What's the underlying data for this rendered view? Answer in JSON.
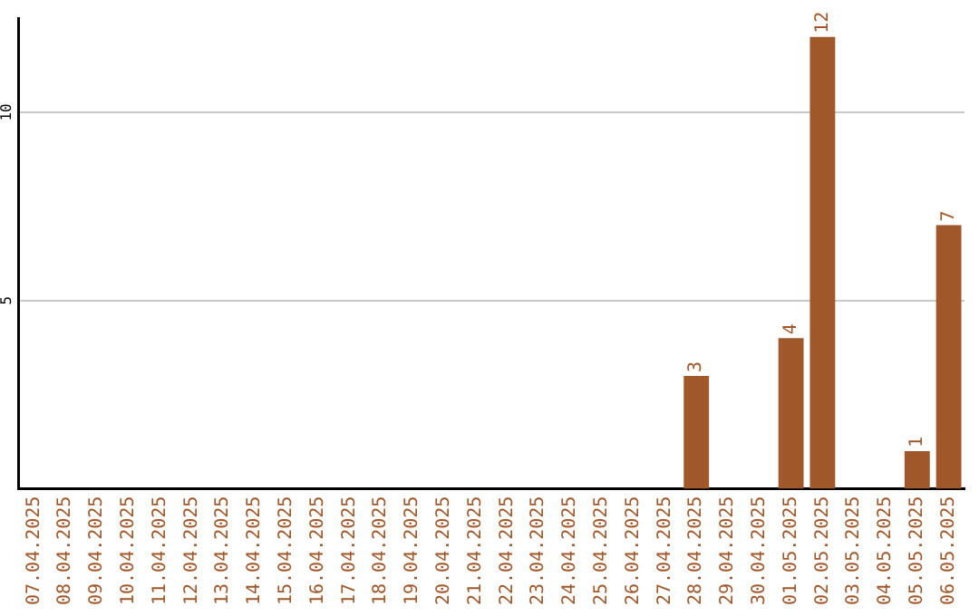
{
  "chart_data": {
    "type": "bar",
    "categories": [
      "07.04.2025",
      "08.04.2025",
      "09.04.2025",
      "10.04.2025",
      "11.04.2025",
      "12.04.2025",
      "13.04.2025",
      "14.04.2025",
      "15.04.2025",
      "16.04.2025",
      "17.04.2025",
      "18.04.2025",
      "19.04.2025",
      "20.04.2025",
      "21.04.2025",
      "22.04.2025",
      "23.04.2025",
      "24.04.2025",
      "25.04.2025",
      "26.04.2025",
      "27.04.2025",
      "28.04.2025",
      "29.04.2025",
      "30.04.2025",
      "01.05.2025",
      "02.05.2025",
      "03.05.2025",
      "04.05.2025",
      "05.05.2025",
      "06.05.2025"
    ],
    "values": [
      0,
      0,
      0,
      0,
      0,
      0,
      0,
      0,
      0,
      0,
      0,
      0,
      0,
      0,
      0,
      0,
      0,
      0,
      0,
      0,
      0,
      3,
      0,
      0,
      4,
      12,
      0,
      0,
      1,
      7
    ],
    "value_labels": [
      null,
      null,
      null,
      null,
      null,
      null,
      null,
      null,
      null,
      null,
      null,
      null,
      null,
      null,
      null,
      null,
      null,
      null,
      null,
      null,
      null,
      "3",
      null,
      null,
      "4",
      "12",
      null,
      null,
      "1",
      "7"
    ],
    "color": "#a0572a",
    "ylim": [
      0,
      12.5
    ],
    "yticks": [
      5,
      10
    ],
    "grid": "y",
    "legend": false
  }
}
